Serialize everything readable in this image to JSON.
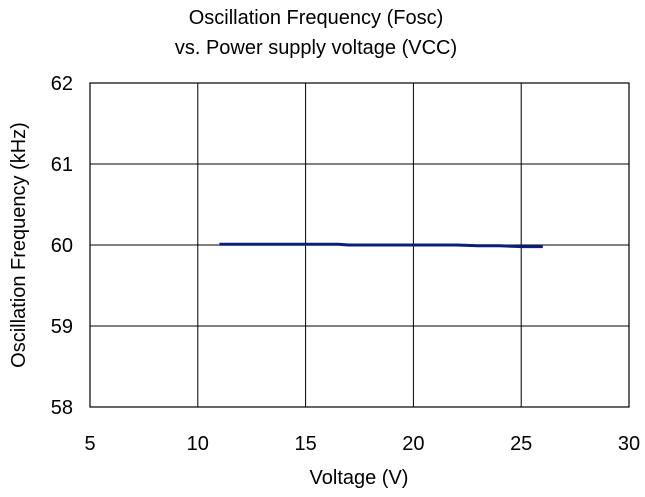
{
  "chart_data": {
    "type": "line",
    "title_line1": "Oscillation Frequency (Fosc)",
    "title_line2": "vs. Power supply voltage (VCC)",
    "xlabel": "Voltage (V)",
    "ylabel": "Oscillation Frequency (kHz)",
    "xlim": [
      5,
      30
    ],
    "ylim": [
      58,
      62
    ],
    "x_ticks": [
      "5",
      "10",
      "15",
      "20",
      "25",
      "30"
    ],
    "y_ticks": [
      "58",
      "59",
      "60",
      "61",
      "62"
    ],
    "grid": true,
    "legend": "none",
    "series": [
      {
        "color": "#0a1f7a",
        "x": [
          11,
          12,
          13,
          14,
          15,
          16,
          16.5,
          17,
          18,
          19,
          20,
          21,
          22,
          23,
          24,
          25,
          26
        ],
        "y": [
          60.01,
          60.01,
          60.01,
          60.01,
          60.01,
          60.01,
          60.01,
          60.0,
          60.0,
          60.0,
          60.0,
          60.0,
          60.0,
          59.99,
          59.99,
          59.98,
          59.98
        ]
      }
    ]
  }
}
